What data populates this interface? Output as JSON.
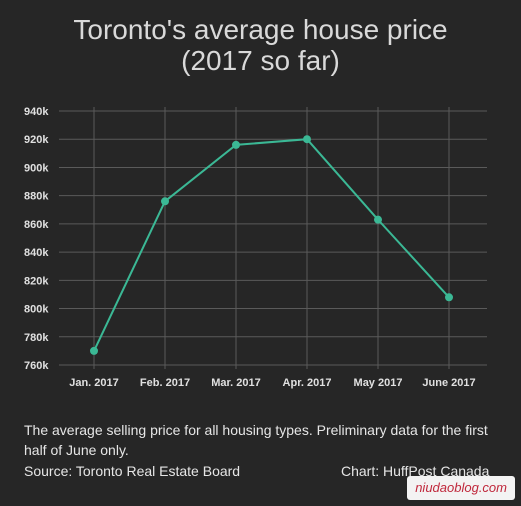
{
  "title_line1": "Toronto's average house price",
  "title_line2": "(2017 so far)",
  "chart_data": {
    "type": "line",
    "categories": [
      "Jan. 2017",
      "Feb. 2017",
      "Mar. 2017",
      "Apr. 2017",
      "May 2017",
      "June 2017"
    ],
    "values": [
      770000,
      876000,
      916000,
      920000,
      863000,
      808000
    ],
    "y_ticks": [
      760000,
      780000,
      800000,
      820000,
      840000,
      860000,
      880000,
      900000,
      920000,
      940000
    ],
    "y_tick_labels": [
      "760k",
      "780k",
      "800k",
      "820k",
      "840k",
      "860k",
      "880k",
      "900k",
      "920k",
      "940k"
    ],
    "ylim": [
      760000,
      940000
    ],
    "grid": true,
    "colors": {
      "line": "#3bb895",
      "marker": "#3bb895",
      "grid": "#5a5a5a",
      "text": "#e0e0e0"
    }
  },
  "note": "The average selling price for all housing types. Preliminary data for the first half of June only.",
  "source": "Source: Toronto Real Estate Board",
  "credit": "Chart: HuffPost Canada",
  "watermark": "niudaoblog.com"
}
